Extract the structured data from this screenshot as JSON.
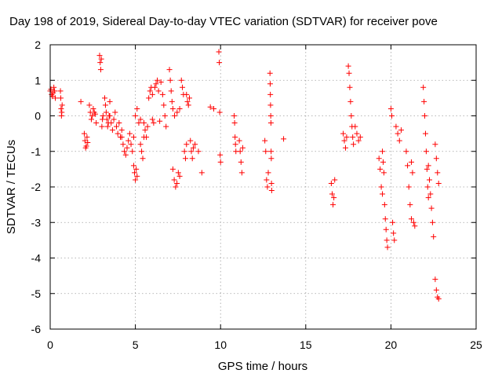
{
  "chart_data": {
    "type": "scatter",
    "title": "Day 198 of 2019, Sidereal Day-to-day VTEC variation (SDTVAR) for receiver pove",
    "xlabel": "GPS time / hours",
    "ylabel": "SDTVAR / TECUs",
    "xlim": [
      0,
      25
    ],
    "ylim": [
      -6,
      2
    ],
    "xticks": [
      0,
      5,
      10,
      15,
      20,
      25
    ],
    "yticks": [
      -6,
      -5,
      -4,
      -3,
      -2,
      -1,
      0,
      1,
      2
    ],
    "grid": true,
    "marker": "+",
    "color": "#ff0000",
    "segments": [
      {
        "x0": 0.0,
        "x1": 0.3,
        "ys": [
          0.7,
          0.75,
          0.6,
          0.55,
          0.65,
          0.8,
          0.7,
          0.5
        ]
      },
      {
        "x0": 0.6,
        "x1": 0.7,
        "ys": [
          0.7,
          0.5,
          0.2,
          0.0,
          0.1,
          0.3
        ]
      },
      {
        "x0": 1.8,
        "x1": 1.8,
        "ys": [
          0.4
        ]
      },
      {
        "x0": 2.0,
        "x1": 2.2,
        "ys": [
          -0.5,
          -0.7,
          -0.9,
          -0.85,
          -0.6,
          -0.75
        ]
      },
      {
        "x0": 2.3,
        "x1": 2.7,
        "ys": [
          0.3,
          0.1,
          -0.1,
          0.0,
          0.2,
          0.1,
          0.05,
          -0.2
        ]
      },
      {
        "x0": 2.9,
        "x1": 3.1,
        "ys": [
          1.7,
          1.5,
          1.3,
          1.6,
          -0.3,
          -0.1,
          0.0
        ]
      },
      {
        "x0": 3.2,
        "x1": 3.5,
        "ys": [
          0.5,
          0.3,
          0.1,
          -0.1,
          -0.3,
          -0.2,
          0.0,
          0.4
        ]
      },
      {
        "x0": 3.5,
        "x1": 4.2,
        "ys": [
          0.0,
          -0.2,
          -0.4,
          -0.1,
          0.1,
          -0.3,
          -0.5,
          -0.2,
          -0.6,
          -0.4
        ]
      },
      {
        "x0": 4.2,
        "x1": 4.9,
        "ys": [
          -0.6,
          -0.8,
          -1.0,
          -1.1,
          -0.9,
          -0.7,
          -0.5,
          -0.8,
          -1.0,
          -0.6
        ]
      },
      {
        "x0": 4.9,
        "x1": 5.1,
        "ys": [
          -1.4,
          -1.6,
          -1.8,
          -1.5,
          -1.7
        ]
      },
      {
        "x0": 5.0,
        "x1": 5.3,
        "ys": [
          0.0,
          0.2,
          -0.2,
          -0.1
        ]
      },
      {
        "x0": 5.3,
        "x1": 5.5,
        "ys": [
          -0.8,
          -1.0,
          -1.2,
          -0.6
        ]
      },
      {
        "x0": 5.5,
        "x1": 6.0,
        "ys": [
          -0.2,
          -0.4,
          -0.6,
          -0.3,
          0.5,
          0.7,
          0.8,
          0.6
        ]
      },
      {
        "x0": 6.0,
        "x1": 6.5,
        "ys": [
          -0.1,
          -0.2,
          0.8,
          0.9,
          1.0,
          0.7,
          -0.15,
          0.95
        ]
      },
      {
        "x0": 6.6,
        "x1": 6.8,
        "ys": [
          0.6,
          0.3,
          0.0,
          -0.3
        ]
      },
      {
        "x0": 7.0,
        "x1": 7.2,
        "ys": [
          1.3,
          1.0,
          0.7,
          0.4,
          0.2
        ]
      },
      {
        "x0": 7.2,
        "x1": 7.6,
        "ys": [
          -1.5,
          -1.8,
          -2.0,
          -1.9,
          -1.6,
          -1.7
        ]
      },
      {
        "x0": 7.3,
        "x1": 7.6,
        "ys": [
          0.0,
          0.1,
          0.2
        ]
      },
      {
        "x0": 7.7,
        "x1": 8.0,
        "ys": [
          1.0,
          0.8,
          0.6,
          -1.0,
          -1.2,
          -0.8
        ]
      },
      {
        "x0": 8.0,
        "x1": 8.4,
        "ys": [
          0.6,
          0.4,
          0.3,
          0.5,
          -0.7,
          -1.0,
          -1.2,
          -0.9
        ]
      },
      {
        "x0": 8.5,
        "x1": 8.7,
        "ys": [
          -0.8,
          -1.0
        ]
      },
      {
        "x0": 8.9,
        "x1": 8.9,
        "ys": [
          -1.6
        ]
      },
      {
        "x0": 9.4,
        "x1": 9.6,
        "ys": [
          0.25,
          0.2
        ]
      },
      {
        "x0": 9.9,
        "x1": 10.0,
        "ys": [
          1.8,
          1.5,
          0.1,
          -1.1,
          -1.3
        ]
      },
      {
        "x0": 10.8,
        "x1": 10.9,
        "ys": [
          0.0,
          -0.2,
          -0.6,
          -0.8,
          -1.0
        ]
      },
      {
        "x0": 11.1,
        "x1": 11.3,
        "ys": [
          -0.7,
          -1.0,
          -1.3,
          -1.6,
          -0.9
        ]
      },
      {
        "x0": 12.6,
        "x1": 12.8,
        "ys": [
          -0.7,
          -1.0,
          -1.8,
          -2.0,
          -1.6
        ]
      },
      {
        "x0": 12.9,
        "x1": 13.0,
        "ys": [
          1.2,
          0.9,
          0.6,
          0.3,
          0.0,
          -0.2,
          -1.0,
          -1.2,
          -1.9,
          -2.1
        ]
      },
      {
        "x0": 13.7,
        "x1": 13.7,
        "ys": [
          -0.65
        ]
      },
      {
        "x0": 16.5,
        "x1": 16.7,
        "ys": [
          -1.9,
          -2.2,
          -2.5,
          -2.3,
          -1.8
        ]
      },
      {
        "x0": 17.2,
        "x1": 17.4,
        "ys": [
          -0.5,
          -0.7,
          -0.9,
          -0.6
        ]
      },
      {
        "x0": 17.5,
        "x1": 17.8,
        "ys": [
          1.4,
          1.2,
          0.8,
          0.4,
          0.0,
          -0.3,
          -0.6,
          -0.8
        ]
      },
      {
        "x0": 17.9,
        "x1": 18.2,
        "ys": [
          -0.3,
          -0.5,
          -0.7,
          -0.6
        ]
      },
      {
        "x0": 19.3,
        "x1": 19.5,
        "ys": [
          -1.2,
          -1.5,
          -2.0,
          -2.2
        ]
      },
      {
        "x0": 19.5,
        "x1": 19.8,
        "ys": [
          -1.0,
          -1.3,
          -1.6,
          -2.5,
          -2.9,
          -3.2,
          -3.5,
          -3.7
        ]
      },
      {
        "x0": 20.0,
        "x1": 20.2,
        "ys": [
          0.2,
          0.0,
          -3.0,
          -3.3,
          -3.5
        ]
      },
      {
        "x0": 20.3,
        "x1": 20.6,
        "ys": [
          -0.3,
          -0.5,
          -0.7,
          -0.4
        ]
      },
      {
        "x0": 20.9,
        "x1": 21.2,
        "ys": [
          -1.0,
          -1.4,
          -2.0,
          -2.5,
          -2.9
        ]
      },
      {
        "x0": 21.2,
        "x1": 21.4,
        "ys": [
          -1.3,
          -1.6,
          -3.0,
          -3.1
        ]
      },
      {
        "x0": 21.9,
        "x1": 22.2,
        "ys": [
          0.8,
          0.4,
          0.0,
          -0.5,
          -1.0,
          -1.5,
          -2.0,
          -2.3
        ]
      },
      {
        "x0": 22.2,
        "x1": 22.5,
        "ys": [
          -1.4,
          -1.8,
          -2.2,
          -2.6,
          -3.0,
          -3.4
        ]
      },
      {
        "x0": 22.6,
        "x1": 22.8,
        "ys": [
          -4.6,
          -4.9,
          -5.1,
          -5.15
        ]
      },
      {
        "x0": 22.6,
        "x1": 22.8,
        "ys": [
          -0.8,
          -1.2,
          -1.6,
          -1.9
        ]
      }
    ]
  }
}
